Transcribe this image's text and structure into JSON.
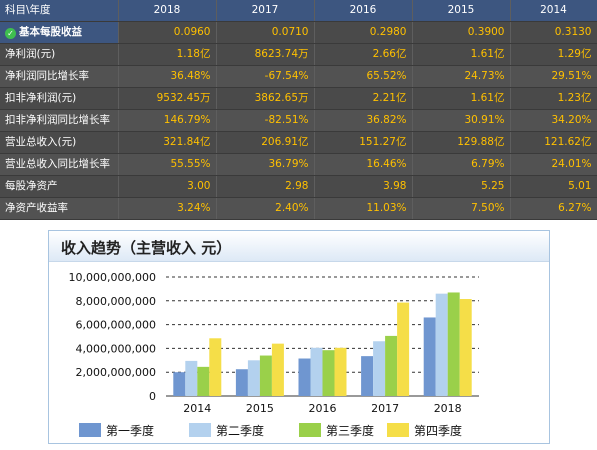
{
  "table": {
    "header": [
      "科目\\年度",
      "2018",
      "2017",
      "2016",
      "2015",
      "2014"
    ],
    "rows": [
      {
        "label": "基本每股收益",
        "highlight": true,
        "values": [
          "0.0960",
          "0.0710",
          "0.2980",
          "0.3900",
          "0.3130"
        ]
      },
      {
        "label": "净利润(元)",
        "values": [
          "1.18亿",
          "8623.74万",
          "2.66亿",
          "1.61亿",
          "1.29亿"
        ]
      },
      {
        "label": "净利润同比增长率",
        "values": [
          "36.48%",
          "-67.54%",
          "65.52%",
          "24.73%",
          "29.51%"
        ]
      },
      {
        "label": "扣非净利润(元)",
        "values": [
          "9532.45万",
          "3862.65万",
          "2.21亿",
          "1.61亿",
          "1.23亿"
        ]
      },
      {
        "label": "扣非净利润同比增长率",
        "values": [
          "146.79%",
          "-82.51%",
          "36.82%",
          "30.91%",
          "34.20%"
        ]
      },
      {
        "label": "营业总收入(元)",
        "values": [
          "321.84亿",
          "206.91亿",
          "151.27亿",
          "129.88亿",
          "121.62亿"
        ]
      },
      {
        "label": "营业总收入同比增长率",
        "values": [
          "55.55%",
          "36.79%",
          "16.46%",
          "6.79%",
          "24.01%"
        ]
      },
      {
        "label": "每股净资产",
        "values": [
          "3.00",
          "2.98",
          "3.98",
          "5.25",
          "5.01"
        ]
      },
      {
        "label": "净资产收益率",
        "values": [
          "3.24%",
          "2.40%",
          "11.03%",
          "7.50%",
          "6.27%"
        ]
      }
    ]
  },
  "chart_data": {
    "type": "bar",
    "title": "收入趋势（主营收入 元）",
    "categories": [
      "2014",
      "2015",
      "2016",
      "2017",
      "2018"
    ],
    "series": [
      {
        "name": "第一季度",
        "color": "#6f96d0",
        "values": [
          2000000000,
          2250000000,
          3150000000,
          3350000000,
          6600000000
        ]
      },
      {
        "name": "第二季度",
        "color": "#b3d1ee",
        "values": [
          2950000000,
          3000000000,
          4050000000,
          4600000000,
          8600000000
        ]
      },
      {
        "name": "第三季度",
        "color": "#9ad04a",
        "values": [
          2450000000,
          3400000000,
          3850000000,
          5050000000,
          8700000000
        ]
      },
      {
        "name": "第四季度",
        "color": "#f5de48",
        "values": [
          4850000000,
          4400000000,
          4050000000,
          7850000000,
          8150000000
        ]
      }
    ],
    "yticks": [
      "10,000,000,000",
      "8,000,000,000",
      "6,000,000,000",
      "4,000,000,000",
      "2,000,000,000",
      "0"
    ],
    "ylim": [
      0,
      10000000000
    ],
    "grid": true,
    "legend": "bottom"
  }
}
